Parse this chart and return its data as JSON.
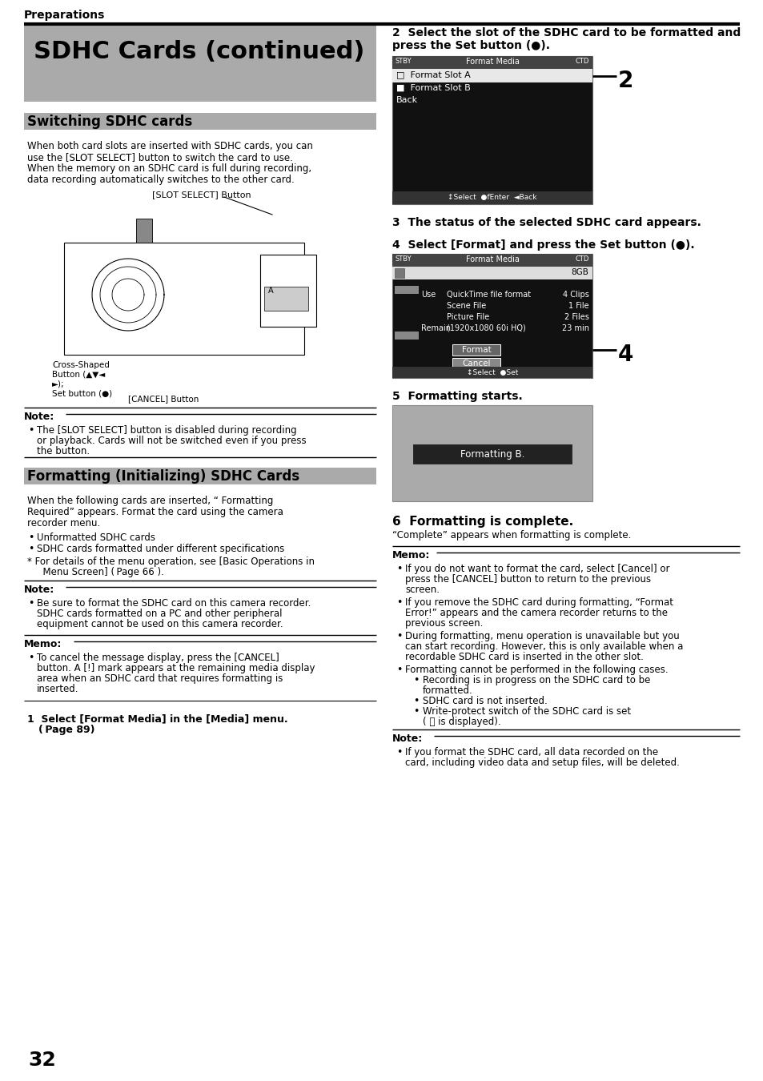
{
  "page_bg": "#ffffff",
  "top_label": "Preparations",
  "title": "SDHC Cards (continued)",
  "title_bg": "#aaaaaa",
  "section1_title": "Switching SDHC cards",
  "section1_bg": "#aaaaaa",
  "section1_line1": "When both card slots are inserted with SDHC cards, you can",
  "section1_line2": "use the [SLOT SELECT] button to switch the card to use.",
  "section1_line3": "When the memory on an SDHC card is full during recording,",
  "section1_line4": "data recording automatically switches to the other card.",
  "slot_select_label": "[SLOT SELECT] Button",
  "note1_title": "Note:",
  "note1_line1": "The [SLOT SELECT] button is disabled during recording",
  "note1_line2": "or playback. Cards will not be switched even if you press",
  "note1_line3": "the button.",
  "section2_title": "Formatting (Initializing) SDHC Cards",
  "section2_bg": "#aaaaaa",
  "section2_line1": "When the following cards are inserted, “ Formatting",
  "section2_line2": "Required” appears. Format the card using the camera",
  "section2_line3": "recorder menu.",
  "bullet1": "Unformatted SDHC cards",
  "bullet2": "SDHC cards formatted under different specifications",
  "asterisk1": "* For details of the menu operation, see [Basic Operations in",
  "asterisk2": "  Menu Screen] ( Page 66 ).",
  "note2_title": "Note:",
  "note2_line1": "Be sure to format the SDHC card on this camera recorder.",
  "note2_line2": "SDHC cards formatted on a PC and other peripheral",
  "note2_line3": "equipment cannot be used on this camera recorder.",
  "memo1_title": "Memo:",
  "memo1_line1": "To cancel the message display, press the [CANCEL]",
  "memo1_line2": "button. A [!] mark appears at the remaining media display",
  "memo1_line3": "area when an SDHC card that requires formatting is",
  "memo1_line4": "inserted.",
  "step1_line1": "1  Select [Format Media] in the [Media] menu.",
  "step1_line2": "( Page 89)",
  "step2_line1": "2  Select the slot of the SDHC card to be formatted and",
  "step2_line2": "press the Set button (●).",
  "step3_text": "3  The status of the selected SDHC card appears.",
  "step4_text": "4  Select [Format] and press the Set button (●).",
  "step5_text": "5  Formatting starts.",
  "step6_text": "6  Formatting is complete.",
  "step6_sub": "“Complete” appears when formatting is complete.",
  "memo2_title": "Memo:",
  "memo2_b1_l1": "If you do not want to format the card, select [Cancel] or",
  "memo2_b1_l2": "press the [CANCEL] button to return to the previous",
  "memo2_b1_l3": "screen.",
  "memo2_b2_l1": "If you remove the SDHC card during formatting, “Format",
  "memo2_b2_l2": "Error!” appears and the camera recorder returns to the",
  "memo2_b2_l3": "previous screen.",
  "memo2_b3_l1": "During formatting, menu operation is unavailable but you",
  "memo2_b3_l2": "can start recording. However, this is only available when a",
  "memo2_b3_l3": "recordable SDHC card is inserted in the other slot.",
  "memo2_b4_l1": "Formatting cannot be performed in the following cases.",
  "memo2_b4_sub1": "Recording is in progress on the SDHC card to be",
  "memo2_b4_sub1b": "formatted.",
  "memo2_b4_sub2": "SDHC card is not inserted.",
  "memo2_b4_sub3": "Write-protect switch of the SDHC card is set",
  "memo2_b4_sub3b": "( 🔒 is displayed).",
  "note3_title": "Note:",
  "note3_line1": "If you format the SDHC card, all data recorded on the",
  "note3_line2": "card, including video data and setup files, will be deleted.",
  "page_number": "32",
  "screen1_title": "Format Media",
  "screen1_footer": "↕Select  ●fEnter  ◄Back",
  "screen2_title": "Format Media",
  "screen2_8gb": "8GB",
  "screen2_footer": "↕Select  ●Set",
  "formatting_text": "Formatting B."
}
